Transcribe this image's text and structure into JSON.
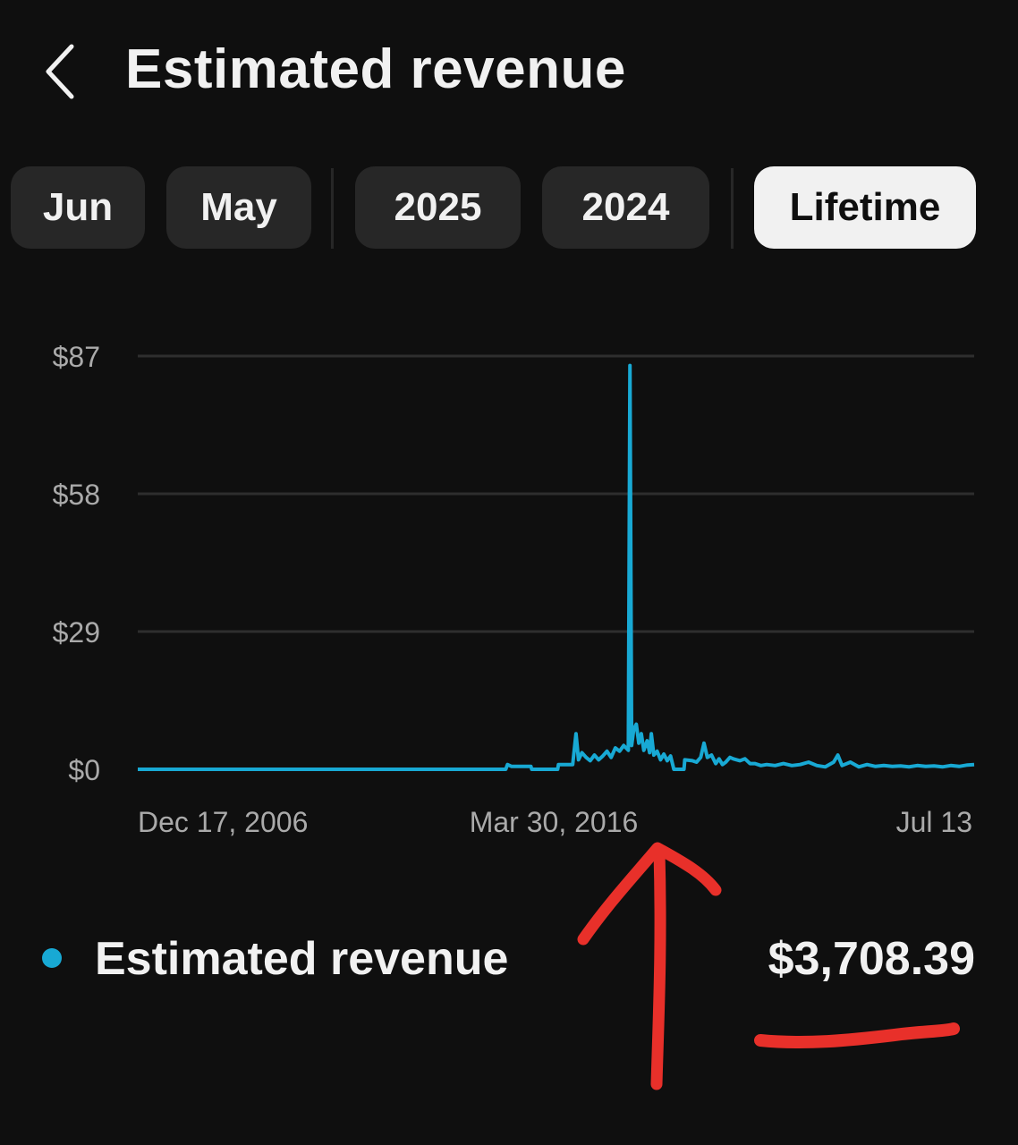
{
  "header": {
    "title": "Estimated revenue",
    "back_icon": "chevron-left-icon"
  },
  "chips": [
    {
      "label": "Jun",
      "selected": false
    },
    {
      "label": "May",
      "selected": false
    },
    {
      "label": "2025",
      "selected": false
    },
    {
      "label": "2024",
      "selected": false
    },
    {
      "label": "Lifetime",
      "selected": true
    }
  ],
  "colors": {
    "background": "#0f0f0f",
    "series": "#18a9d4",
    "chip_bg": "#272727",
    "chip_selected_bg": "#f1f1f1",
    "annotation": "#e8302a",
    "grid": "#2e2e2e",
    "axis_text": "#aaaaaa"
  },
  "chart_data": {
    "type": "line",
    "title": "",
    "xlabel": "",
    "ylabel": "",
    "y_ticks": [
      "$87",
      "$58",
      "$29",
      "$0"
    ],
    "y_tick_values": [
      87,
      58,
      29,
      0
    ],
    "ylim": [
      0,
      87
    ],
    "x_ticks": [
      "Dec 17, 2006",
      "Mar 30, 2016",
      "Jul 13"
    ],
    "grid": true,
    "series": [
      {
        "values": [
          [
            0.0,
            0.0
          ],
          [
            0.44,
            0.0
          ],
          [
            0.442,
            1.0
          ],
          [
            0.447,
            0.6
          ],
          [
            0.47,
            0.6
          ],
          [
            0.471,
            0.0
          ],
          [
            0.502,
            0.0
          ],
          [
            0.503,
            1.0
          ],
          [
            0.52,
            1.0
          ],
          [
            0.524,
            7.5
          ],
          [
            0.527,
            2.0
          ],
          [
            0.531,
            3.5
          ],
          [
            0.536,
            2.5
          ],
          [
            0.541,
            1.8
          ],
          [
            0.546,
            3.0
          ],
          [
            0.551,
            2.0
          ],
          [
            0.556,
            2.8
          ],
          [
            0.561,
            3.8
          ],
          [
            0.566,
            2.5
          ],
          [
            0.571,
            4.5
          ],
          [
            0.576,
            3.8
          ],
          [
            0.581,
            5.0
          ],
          [
            0.5865,
            4.0
          ],
          [
            0.5885,
            85.0
          ],
          [
            0.5905,
            5.0
          ],
          [
            0.593,
            8.5
          ],
          [
            0.596,
            9.5
          ],
          [
            0.599,
            5.5
          ],
          [
            0.602,
            7.5
          ],
          [
            0.605,
            4.0
          ],
          [
            0.609,
            6.0
          ],
          [
            0.612,
            3.5
          ],
          [
            0.614,
            7.5
          ],
          [
            0.617,
            3.0
          ],
          [
            0.621,
            3.8
          ],
          [
            0.625,
            2.0
          ],
          [
            0.629,
            3.2
          ],
          [
            0.633,
            1.8
          ],
          [
            0.637,
            2.8
          ],
          [
            0.641,
            0.0
          ],
          [
            0.653,
            0.0
          ],
          [
            0.654,
            2.0
          ],
          [
            0.663,
            1.8
          ],
          [
            0.668,
            1.5
          ],
          [
            0.673,
            2.5
          ],
          [
            0.677,
            5.5
          ],
          [
            0.681,
            2.5
          ],
          [
            0.686,
            3.0
          ],
          [
            0.691,
            1.2
          ],
          [
            0.695,
            2.2
          ],
          [
            0.699,
            1.0
          ],
          [
            0.703,
            1.5
          ],
          [
            0.708,
            2.5
          ],
          [
            0.712,
            2.2
          ],
          [
            0.72,
            1.8
          ],
          [
            0.726,
            2.2
          ],
          [
            0.732,
            1.2
          ],
          [
            0.738,
            1.2
          ],
          [
            0.745,
            0.8
          ],
          [
            0.752,
            1.0
          ],
          [
            0.762,
            0.8
          ],
          [
            0.772,
            1.2
          ],
          [
            0.782,
            0.8
          ],
          [
            0.792,
            1.0
          ],
          [
            0.802,
            1.5
          ],
          [
            0.812,
            0.8
          ],
          [
            0.822,
            0.5
          ],
          [
            0.832,
            1.5
          ],
          [
            0.837,
            3.0
          ],
          [
            0.842,
            0.8
          ],
          [
            0.852,
            1.5
          ],
          [
            0.862,
            0.5
          ],
          [
            0.872,
            1.0
          ],
          [
            0.882,
            0.6
          ],
          [
            0.892,
            0.8
          ],
          [
            0.902,
            0.6
          ],
          [
            0.912,
            0.7
          ],
          [
            0.922,
            0.5
          ],
          [
            0.932,
            0.8
          ],
          [
            0.942,
            0.6
          ],
          [
            0.952,
            0.7
          ],
          [
            0.962,
            0.5
          ],
          [
            0.972,
            0.8
          ],
          [
            0.982,
            0.6
          ],
          [
            0.992,
            0.9
          ],
          [
            1.0,
            1.0
          ]
        ]
      }
    ]
  },
  "legend": {
    "label": "Estimated revenue",
    "total": "$3,708.39"
  }
}
